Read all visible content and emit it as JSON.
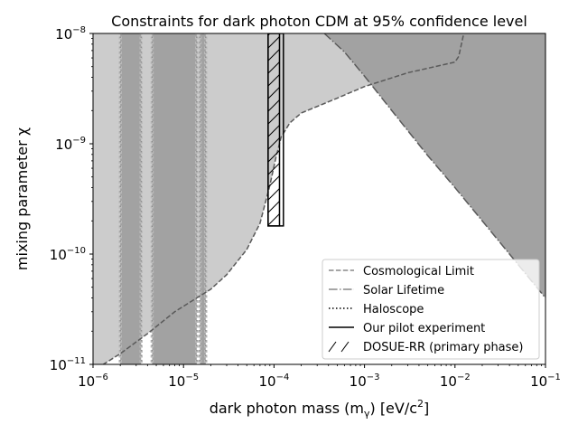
{
  "chart_data": {
    "type": "area",
    "title": "Constraints for dark photon CDM at 95% confidence level",
    "xlabel": "dark photon mass (m",
    "xlabel_sub": "γ",
    "xlabel_unit": ") [eV/c",
    "xlabel_unit_sup": "2",
    "xlabel_end": "]",
    "ylabel": "mixing parameter χ",
    "xscale": "log",
    "yscale": "log",
    "xlim": [
      1e-06,
      0.1
    ],
    "ylim": [
      1e-11,
      1e-08
    ],
    "xticks": [
      {
        "base": "10",
        "exp": "−6",
        "value": 1e-06
      },
      {
        "base": "10",
        "exp": "−5",
        "value": 1e-05
      },
      {
        "base": "10",
        "exp": "−4",
        "value": 0.0001
      },
      {
        "base": "10",
        "exp": "−3",
        "value": 0.001
      },
      {
        "base": "10",
        "exp": "−2",
        "value": 0.01
      },
      {
        "base": "10",
        "exp": "−1",
        "value": 0.1
      }
    ],
    "yticks": [
      {
        "base": "10",
        "exp": "−11",
        "value": 1e-11
      },
      {
        "base": "10",
        "exp": "−10",
        "value": 1e-10
      },
      {
        "base": "10",
        "exp": "−9",
        "value": 1e-09
      },
      {
        "base": "10",
        "exp": "−8",
        "value": 1e-08
      }
    ],
    "legend_position": "lower-right",
    "legend": [
      {
        "label": "Cosmological Limit",
        "style": "dashed"
      },
      {
        "label": "Solar Lifetime",
        "style": "dashdot"
      },
      {
        "label": "Haloscope",
        "style": "dotted"
      },
      {
        "label": "Our pilot experiment",
        "style": "solid"
      },
      {
        "label": "DOSUE-RR (primary phase)",
        "style": "hatch"
      }
    ],
    "colors": {
      "excluded_light": "#cccccc",
      "excluded_dark": "#a2a2a2",
      "boundary": "#5a5a5a"
    },
    "series": [
      {
        "name": "Cosmological Limit",
        "points": [
          [
            1e-06,
            8e-12
          ],
          [
            1.3e-06,
            1e-11
          ],
          [
            2e-06,
            1.25e-11
          ],
          [
            4e-06,
            1.9e-11
          ],
          [
            8e-06,
            3e-11
          ],
          [
            1.4e-05,
            4e-11
          ],
          [
            2e-05,
            4.8e-11
          ],
          [
            3e-05,
            6.5e-11
          ],
          [
            5e-05,
            1.1e-10
          ],
          [
            7e-05,
            1.9e-10
          ],
          [
            9e-05,
            4.2e-10
          ],
          [
            0.000105,
            7.5e-10
          ],
          [
            0.00012,
            1.15e-09
          ],
          [
            0.00015,
            1.55e-09
          ],
          [
            0.0002,
            1.9e-09
          ],
          [
            0.0004,
            2.4e-09
          ],
          [
            0.001,
            3.3e-09
          ],
          [
            0.003,
            4.4e-09
          ],
          [
            0.01,
            5.5e-09
          ],
          [
            0.011,
            6.2e-09
          ],
          [
            0.0125,
            1e-08
          ]
        ]
      },
      {
        "name": "Solar Lifetime",
        "points": [
          [
            0.00036,
            1e-08
          ],
          [
            0.0006,
            6.8e-09
          ],
          [
            0.001,
            4.1e-09
          ],
          [
            0.002,
            2e-09
          ],
          [
            0.005,
            7.8e-10
          ],
          [
            0.01,
            4e-10
          ],
          [
            0.02,
            2e-10
          ],
          [
            0.05,
            8e-11
          ],
          [
            0.1,
            4e-11
          ]
        ]
      },
      {
        "name": "Haloscope",
        "bands": [
          [
            2e-06,
            3.4e-06
          ],
          [
            4.5e-06,
            1.4e-05
          ],
          [
            1.52e-05,
            1.76e-05
          ]
        ]
      },
      {
        "name": "Our pilot experiment",
        "box": {
          "x": [
            8.6e-05,
            0.000127
          ],
          "y": [
            1.8e-10,
            1e-08
          ]
        }
      },
      {
        "name": "DOSUE-RR (primary phase)",
        "box": {
          "x": [
            8.6e-05,
            0.000115
          ],
          "y": [
            1.8e-10,
            1e-08
          ]
        }
      }
    ],
    "corner_region": {
      "points": [
        [
          0.07,
          1e-08
        ],
        [
          0.085,
          9.2e-09
        ],
        [
          0.1,
          8.7e-09
        ],
        [
          0.1,
          1e-08
        ]
      ]
    }
  }
}
